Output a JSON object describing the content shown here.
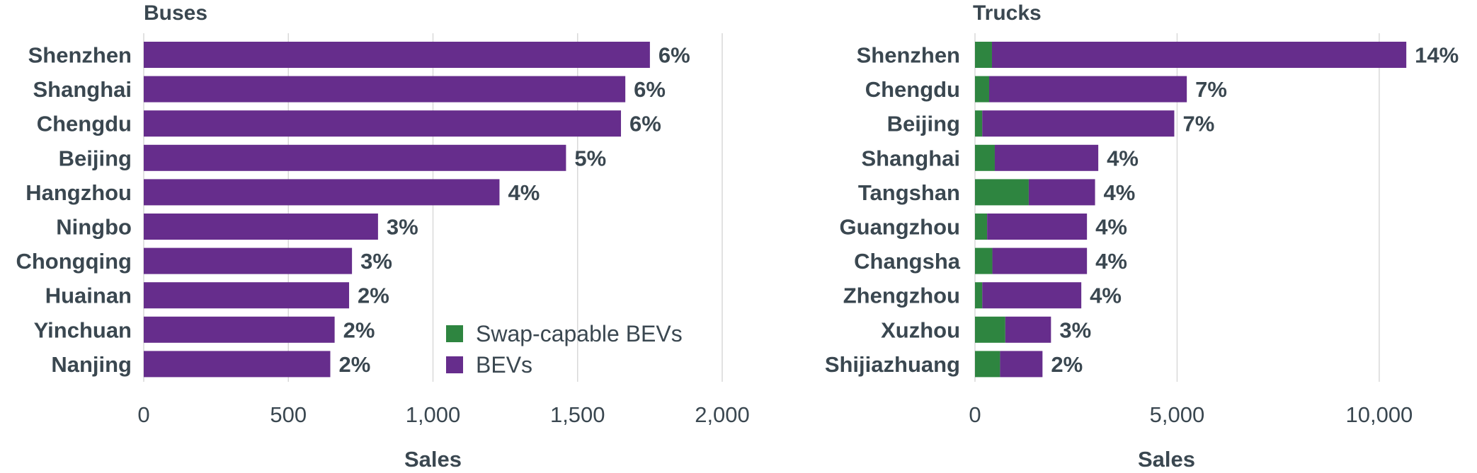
{
  "colors": {
    "swap_capable": "#2e8540",
    "bev": "#662d8c",
    "text": "#3a4750",
    "grid": "#d9d9d9"
  },
  "legend": {
    "items": [
      {
        "label": "Swap-capable BEVs",
        "color_key": "swap_capable"
      },
      {
        "label": "BEVs",
        "color_key": "bev"
      }
    ],
    "placement": "bottom-right of Buses panel"
  },
  "chart_data": [
    {
      "type": "bar",
      "orientation": "horizontal",
      "stacked": true,
      "title": "Buses",
      "xlabel": "Sales",
      "ylabel": "",
      "xlim": [
        0,
        2000
      ],
      "xticks": [
        0,
        500,
        1000,
        1500,
        2000
      ],
      "xtick_labels": [
        "0",
        "500",
        "1,000",
        "1,500",
        "2,000"
      ],
      "grid": true,
      "categories": [
        "Shenzhen",
        "Shanghai",
        "Chengdu",
        "Beijing",
        "Hangzhou",
        "Ningbo",
        "Chongqing",
        "Huainan",
        "Yinchuan",
        "Nanjing"
      ],
      "series": [
        {
          "name": "Swap-capable BEVs",
          "values": [
            0,
            0,
            0,
            0,
            0,
            0,
            0,
            0,
            0,
            0
          ]
        },
        {
          "name": "BEVs",
          "values": [
            1750,
            1665,
            1650,
            1460,
            1230,
            810,
            720,
            710,
            660,
            645
          ]
        }
      ],
      "data_labels": [
        "6%",
        "6%",
        "6%",
        "5%",
        "4%",
        "3%",
        "3%",
        "2%",
        "2%",
        "2%"
      ]
    },
    {
      "type": "bar",
      "orientation": "horizontal",
      "stacked": true,
      "title": "Trucks",
      "xlabel": "Sales",
      "ylabel": "",
      "xlim": [
        0,
        11000
      ],
      "xticks": [
        0,
        5000,
        10000
      ],
      "xtick_labels": [
        "0",
        "5,000",
        "10,000"
      ],
      "grid": true,
      "categories": [
        "Shenzhen",
        "Chengdu",
        "Beijing",
        "Shanghai",
        "Tangshan",
        "Guangzhou",
        "Changsha",
        "Zhengzhou",
        "Xuzhou",
        "Shijiazhuang"
      ],
      "series": [
        {
          "name": "Swap-capable BEVs",
          "values": [
            420,
            350,
            180,
            490,
            1330,
            300,
            430,
            180,
            750,
            620
          ]
        },
        {
          "name": "BEVs",
          "values": [
            10250,
            4890,
            4750,
            2560,
            1640,
            2470,
            2340,
            2450,
            1130,
            1050
          ]
        }
      ],
      "data_labels": [
        "14%",
        "7%",
        "7%",
        "4%",
        "4%",
        "4%",
        "4%",
        "4%",
        "3%",
        "2%"
      ]
    }
  ]
}
